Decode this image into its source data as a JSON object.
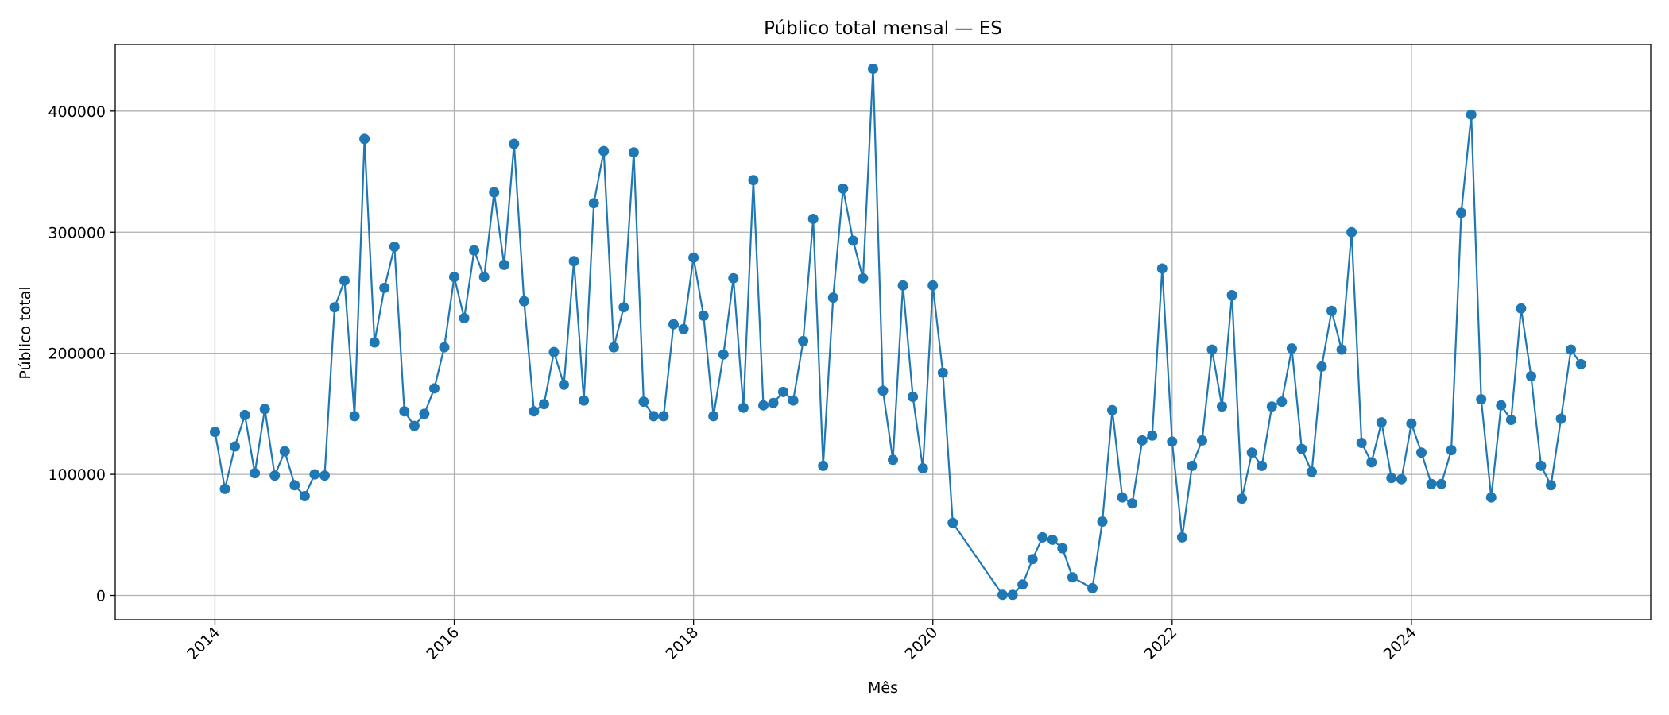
{
  "chart_data": {
    "type": "line",
    "title": "Público total mensal — ES",
    "xlabel": "Mês",
    "ylabel": "Público total",
    "grid": true,
    "legend": "none",
    "colors": {
      "series": "#1f77b4",
      "grid": "#b0b0b0",
      "axis": "#000000"
    },
    "xlim": [
      "2013-03",
      "2026-01"
    ],
    "ylim": [
      -20000,
      455000
    ],
    "x_ticks": [
      "2014-01",
      "2016-01",
      "2018-01",
      "2020-01",
      "2022-01",
      "2024-01"
    ],
    "x_tick_labels": [
      "2014",
      "2016",
      "2018",
      "2020",
      "2022",
      "2024"
    ],
    "y_ticks": [
      0,
      100000,
      200000,
      300000,
      400000
    ],
    "y_tick_labels": [
      "0",
      "100000",
      "200000",
      "300000",
      "400000"
    ],
    "series": [
      {
        "x": [
          "2014-01",
          "2014-02",
          "2014-03",
          "2014-04",
          "2014-05",
          "2014-06",
          "2014-07",
          "2014-08",
          "2014-09",
          "2014-10",
          "2014-11",
          "2014-12",
          "2015-01",
          "2015-02",
          "2015-03",
          "2015-04",
          "2015-05",
          "2015-06",
          "2015-07",
          "2015-08",
          "2015-09",
          "2015-10",
          "2015-11",
          "2015-12",
          "2016-01",
          "2016-02",
          "2016-03",
          "2016-04",
          "2016-05",
          "2016-06",
          "2016-07",
          "2016-08",
          "2016-09",
          "2016-10",
          "2016-11",
          "2016-12",
          "2017-01",
          "2017-02",
          "2017-03",
          "2017-04",
          "2017-05",
          "2017-06",
          "2017-07",
          "2017-08",
          "2017-09",
          "2017-10",
          "2017-11",
          "2017-12",
          "2018-01",
          "2018-02",
          "2018-03",
          "2018-04",
          "2018-05",
          "2018-06",
          "2018-07",
          "2018-08",
          "2018-09",
          "2018-10",
          "2018-11",
          "2018-12",
          "2019-01",
          "2019-02",
          "2019-03",
          "2019-04",
          "2019-05",
          "2019-06",
          "2019-07",
          "2019-08",
          "2019-09",
          "2019-10",
          "2019-11",
          "2019-12",
          "2020-01",
          "2020-02",
          "2020-03",
          "2020-08",
          "2020-09",
          "2020-10",
          "2020-11",
          "2020-12",
          "2021-01",
          "2021-02",
          "2021-03",
          "2021-05",
          "2021-06",
          "2021-07",
          "2021-08",
          "2021-09",
          "2021-10",
          "2021-11",
          "2021-12",
          "2022-01",
          "2022-02",
          "2022-03",
          "2022-04",
          "2022-05",
          "2022-06",
          "2022-07",
          "2022-08",
          "2022-09",
          "2022-10",
          "2022-11",
          "2022-12",
          "2023-01",
          "2023-02",
          "2023-03",
          "2023-04",
          "2023-05",
          "2023-06",
          "2023-07",
          "2023-08",
          "2023-09",
          "2023-10",
          "2023-11",
          "2023-12",
          "2024-01",
          "2024-02",
          "2024-03",
          "2024-04",
          "2024-05",
          "2024-06",
          "2024-07",
          "2024-08",
          "2024-09",
          "2024-10",
          "2024-11",
          "2024-12",
          "2025-01",
          "2025-02",
          "2025-03",
          "2025-04",
          "2025-05",
          "2025-06"
        ],
        "y": [
          135000,
          88000,
          123000,
          149000,
          101000,
          154000,
          99000,
          119000,
          91000,
          82000,
          100000,
          99000,
          238000,
          260000,
          148000,
          377000,
          209000,
          254000,
          288000,
          152000,
          140000,
          150000,
          171000,
          205000,
          263000,
          229000,
          285000,
          263000,
          333000,
          273000,
          373000,
          243000,
          152000,
          158000,
          201000,
          174000,
          276000,
          161000,
          324000,
          367000,
          205000,
          238000,
          366000,
          160000,
          148000,
          148000,
          224000,
          220000,
          279000,
          231000,
          148000,
          199000,
          262000,
          155000,
          343000,
          157000,
          159000,
          168000,
          161000,
          210000,
          311000,
          107000,
          246000,
          336000,
          293000,
          262000,
          435000,
          169000,
          112000,
          256000,
          164000,
          105000,
          256000,
          184000,
          60000,
          500,
          500,
          9000,
          30000,
          48000,
          46000,
          39000,
          15000,
          6000,
          61000,
          153000,
          81000,
          76000,
          128000,
          132000,
          270000,
          127000,
          48000,
          107000,
          128000,
          203000,
          156000,
          248000,
          80000,
          118000,
          107000,
          156000,
          160000,
          204000,
          121000,
          102000,
          189000,
          235000,
          203000,
          300000,
          126000,
          110000,
          143000,
          97000,
          96000,
          142000,
          118000,
          92000,
          92000,
          120000,
          316000,
          397000,
          162000,
          81000,
          157000,
          145000,
          237000,
          181000,
          107000,
          91000,
          146000,
          203000,
          191000
        ]
      }
    ]
  }
}
